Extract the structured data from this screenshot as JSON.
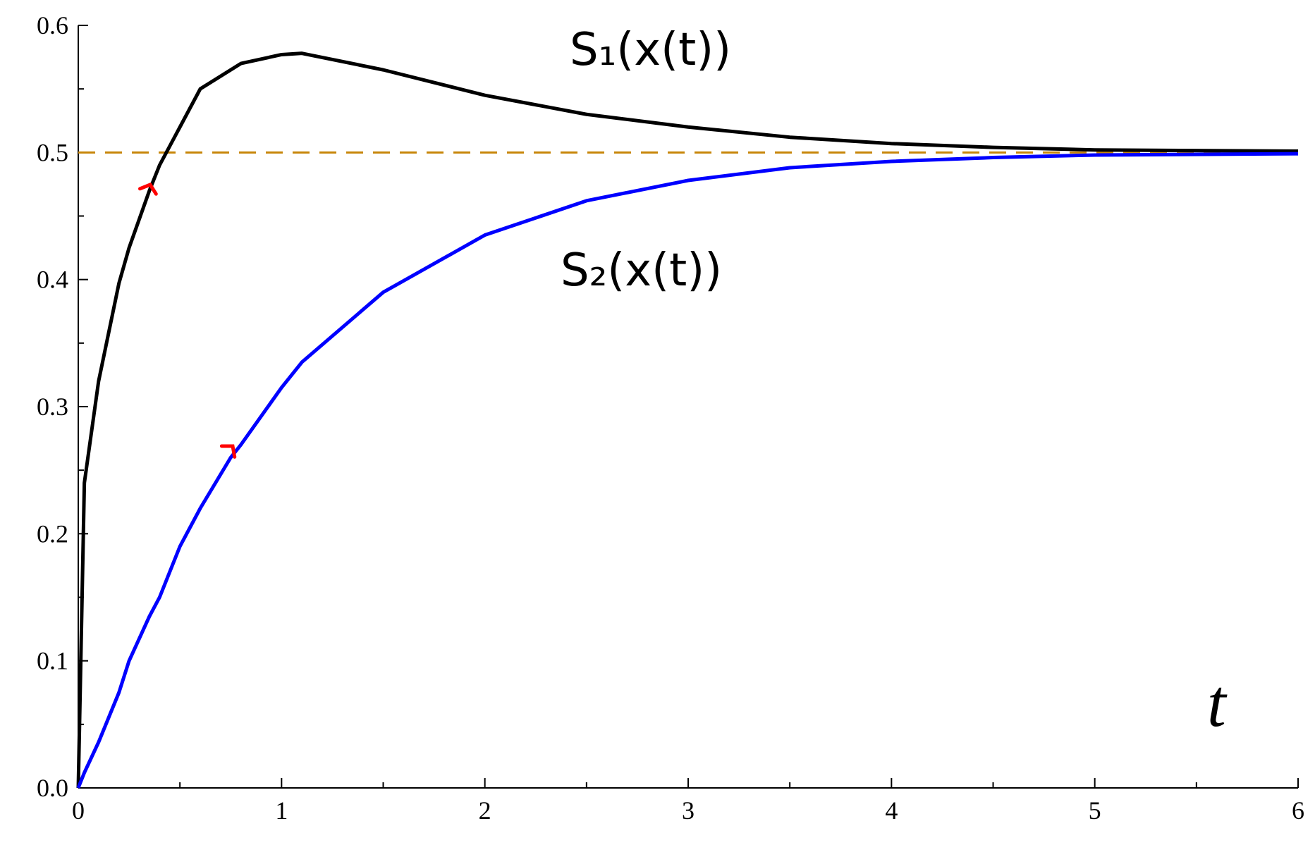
{
  "chart_data": {
    "type": "line",
    "x": [
      0,
      0.03,
      0.1,
      0.2,
      0.25,
      0.35,
      0.4,
      0.5,
      0.6,
      0.75,
      0.8,
      1.0,
      1.1,
      1.5,
      2,
      2.5,
      3,
      3.5,
      4,
      4.5,
      5,
      6
    ],
    "series": [
      {
        "name": "S₁(x(t))",
        "color": "#000000",
        "values": [
          0,
          0.24,
          0.32,
          0.397,
          0.425,
          0.47,
          0.49,
          0.52,
          0.55,
          0.565,
          0.57,
          0.577,
          0.578,
          0.565,
          0.545,
          0.53,
          0.52,
          0.512,
          0.507,
          0.504,
          0.502,
          0.501
        ]
      },
      {
        "name": "S₂(x(t))",
        "color": "#0000ff",
        "values": [
          0,
          0.012,
          0.036,
          0.075,
          0.1,
          0.135,
          0.15,
          0.19,
          0.22,
          0.26,
          0.27,
          0.315,
          0.335,
          0.39,
          0.435,
          0.462,
          0.478,
          0.488,
          0.493,
          0.496,
          0.498,
          0.499
        ]
      }
    ],
    "hline": {
      "value": 0.5,
      "color": "#c8860a"
    },
    "xlabel": "t",
    "xlim": [
      0,
      6
    ],
    "xticks": [
      0,
      1,
      2,
      3,
      4,
      5,
      6
    ],
    "ylim": [
      0,
      0.6
    ],
    "yticks": [
      {
        "value": 0,
        "label": "0.0"
      },
      0.1,
      0.2,
      0.3,
      0.4,
      0.5,
      0.6
    ],
    "minor_ticks": true
  }
}
